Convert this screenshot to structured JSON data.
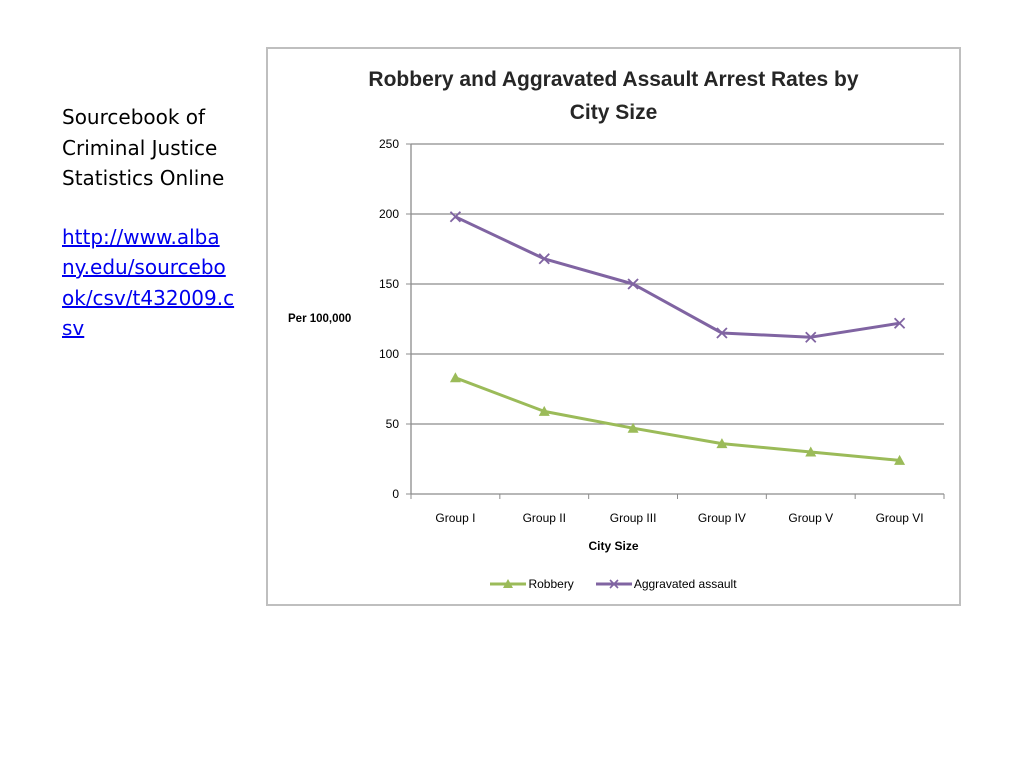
{
  "sidebar": {
    "source_lines": [
      "Sourcebook of",
      "Criminal Justice",
      "Statistics Online"
    ],
    "link_lines": [
      "http://www.alba",
      "ny.edu/sourcebo",
      "ok/csv/t432009.c",
      "sv"
    ]
  },
  "chart_data": {
    "type": "line",
    "title_lines": [
      "Robbery and Aggravated Assault Arrest Rates by",
      "City Size"
    ],
    "xlabel": "City Size",
    "ylabel": "Per 100,000",
    "categories": [
      "Group I",
      "Group II",
      "Group III",
      "Group IV",
      "Group V",
      "Group VI"
    ],
    "ylim": [
      0,
      250
    ],
    "yticks": [
      0,
      50,
      100,
      150,
      200,
      250
    ],
    "grid": true,
    "legend_position": "bottom",
    "series": [
      {
        "name": "Robbery",
        "values": [
          83,
          59,
          47,
          36,
          30,
          24
        ],
        "color": "#9bbb59",
        "marker": "triangle"
      },
      {
        "name": "Aggravated assault",
        "values": [
          198,
          168,
          150,
          115,
          112,
          122
        ],
        "color": "#8064a2",
        "marker": "x"
      }
    ]
  }
}
